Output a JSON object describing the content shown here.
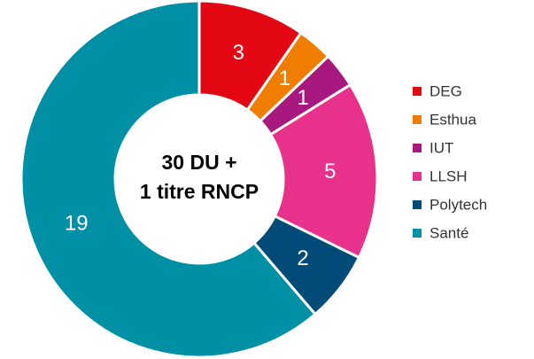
{
  "chart_data": {
    "type": "donut",
    "center_text": [
      "30 DU +",
      "1 titre RNCP"
    ],
    "categories": [
      "DEG",
      "Esthua",
      "IUT",
      "LLSH",
      "Polytech",
      "Santé"
    ],
    "values": [
      3,
      1,
      1,
      5,
      2,
      19
    ],
    "colors": [
      "#e30613",
      "#f07d00",
      "#a8197f",
      "#e8318a",
      "#004b77",
      "#0090a6"
    ],
    "legend": "right"
  }
}
